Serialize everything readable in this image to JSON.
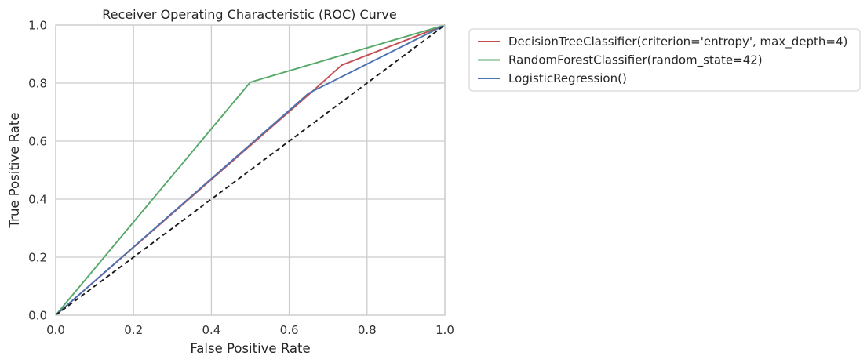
{
  "chart_data": {
    "type": "line",
    "title": "Receiver Operating Characteristic (ROC) Curve",
    "xlabel": "False Positive Rate",
    "ylabel": "True Positive Rate",
    "xlim": [
      0,
      1
    ],
    "ylim": [
      0,
      1
    ],
    "xticks": [
      "0.0",
      "0.2",
      "0.4",
      "0.6",
      "0.8",
      "1.0"
    ],
    "yticks": [
      "0.0",
      "0.2",
      "0.4",
      "0.6",
      "0.8",
      "1.0"
    ],
    "grid": true,
    "legend_position": "outside-upper-right",
    "series": [
      {
        "name": "DecisionTreeClassifier(criterion='entropy', max_depth=4)",
        "color": "#c44e52",
        "x": [
          0.0,
          0.65,
          0.735,
          1.0
        ],
        "y": [
          0.0,
          0.76,
          0.862,
          1.0
        ]
      },
      {
        "name": "RandomForestClassifier(random_state=42)",
        "color": "#55a868",
        "x": [
          0.0,
          0.5,
          1.0
        ],
        "y": [
          0.0,
          0.803,
          1.0
        ]
      },
      {
        "name": "LogisticRegression()",
        "color": "#4c72b0",
        "x": [
          0.0,
          0.65,
          1.0
        ],
        "y": [
          0.0,
          0.765,
          1.0
        ]
      }
    ],
    "reference_line": {
      "style": "dashed",
      "color": "#1a1a1a",
      "x": [
        0,
        1
      ],
      "y": [
        0,
        1
      ]
    }
  }
}
